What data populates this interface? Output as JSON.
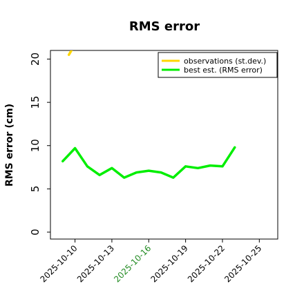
{
  "chart_data": {
    "type": "line",
    "title": "RMS error",
    "ylabel": "RMS error (cm)",
    "xlabel": "",
    "ylim": [
      -0.8,
      21
    ],
    "xlim": [
      "2025-10-08T00:00",
      "2025-10-26T12:00"
    ],
    "y_ticks": [
      0,
      5,
      10,
      15,
      20
    ],
    "x_ticks": [
      {
        "label": "2025-10-10",
        "color": "#000000"
      },
      {
        "label": "2025-10-13",
        "color": "#000000"
      },
      {
        "label": "2025-10-16",
        "color": "#228b22"
      },
      {
        "label": "2025-10-19",
        "color": "#000000"
      },
      {
        "label": "2025-10-22",
        "color": "#000000"
      },
      {
        "label": "2025-10-25",
        "color": "#000000"
      }
    ],
    "grid": false,
    "legend_position": "top-right",
    "series": [
      {
        "name": "observations (st.dev.)",
        "color": "#ffd700",
        "x": [
          "2025-10-09T12:00",
          "2025-10-09T22:00"
        ],
        "values": [
          20.5,
          21.5
        ]
      },
      {
        "name": "best est. (RMS error)",
        "color": "#00ee00",
        "x": [
          "2025-10-09T00:00",
          "2025-10-10T00:00",
          "2025-10-11T00:00",
          "2025-10-12T00:00",
          "2025-10-13T00:00",
          "2025-10-14T00:00",
          "2025-10-15T00:00",
          "2025-10-16T00:00",
          "2025-10-17T00:00",
          "2025-10-18T00:00",
          "2025-10-19T00:00",
          "2025-10-20T00:00",
          "2025-10-21T00:00",
          "2025-10-22T00:00",
          "2025-10-23T00:00"
        ],
        "values": [
          8.2,
          9.7,
          7.6,
          6.6,
          7.4,
          6.3,
          6.9,
          7.1,
          6.9,
          6.3,
          7.6,
          7.4,
          7.7,
          7.6,
          9.8
        ]
      }
    ]
  }
}
